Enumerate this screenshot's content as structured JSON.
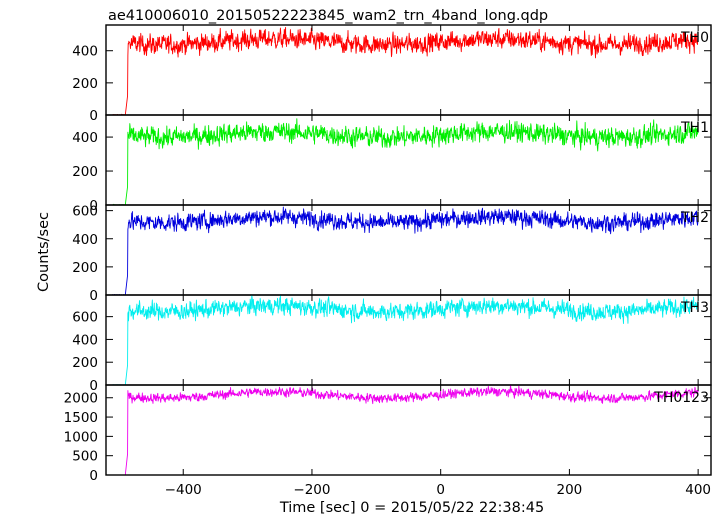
{
  "chart_data": {
    "type": "line",
    "title": "ae410006010_20150522223845_wam2_trn_4band_long.qdp",
    "xlabel": "Time [sec] 0 = 2015/05/22 22:38:45",
    "ylabel": "Counts/sec",
    "xlim": [
      -520,
      420
    ],
    "x_ticks": [
      -400,
      -200,
      0,
      200,
      400
    ],
    "x_tick_labels": [
      "−400",
      "−200",
      "0",
      "200",
      "400"
    ],
    "grid": false,
    "onset_time": -490,
    "panels": [
      {
        "name": "TH0",
        "color": "#ff0000",
        "level": 455,
        "noise": 28,
        "pre_level": 0,
        "ylim": [
          0,
          560
        ],
        "yticks": [
          0,
          200,
          400
        ],
        "ytick_labels": [
          "0",
          "200",
          "400"
        ]
      },
      {
        "name": "TH1",
        "color": "#00ee00",
        "level": 415,
        "noise": 27,
        "pre_level": 0,
        "ylim": [
          0,
          530
        ],
        "yticks": [
          0,
          200,
          400
        ],
        "ytick_labels": [
          "0",
          "200",
          "400"
        ]
      },
      {
        "name": "TH2",
        "color": "#0000dd",
        "level": 535,
        "noise": 28,
        "pre_level": 0,
        "ylim": [
          0,
          640
        ],
        "yticks": [
          0,
          200,
          400,
          600
        ],
        "ytick_labels": [
          "0",
          "200",
          "400",
          "600"
        ]
      },
      {
        "name": "TH3",
        "color": "#00eeee",
        "level": 670,
        "noise": 35,
        "pre_level": 0,
        "ylim": [
          0,
          790
        ],
        "yticks": [
          0,
          200,
          400,
          600
        ],
        "ytick_labels": [
          "0",
          "200",
          "400",
          "600"
        ]
      },
      {
        "name": "TH0123",
        "color": "#ee00ee",
        "level": 2075,
        "noise": 55,
        "pre_level": 0,
        "ylim": [
          0,
          2330
        ],
        "yticks": [
          0,
          500,
          1000,
          1500,
          2000
        ],
        "ytick_labels": [
          "0",
          "500",
          "1000",
          "1500",
          "2000"
        ]
      }
    ]
  }
}
